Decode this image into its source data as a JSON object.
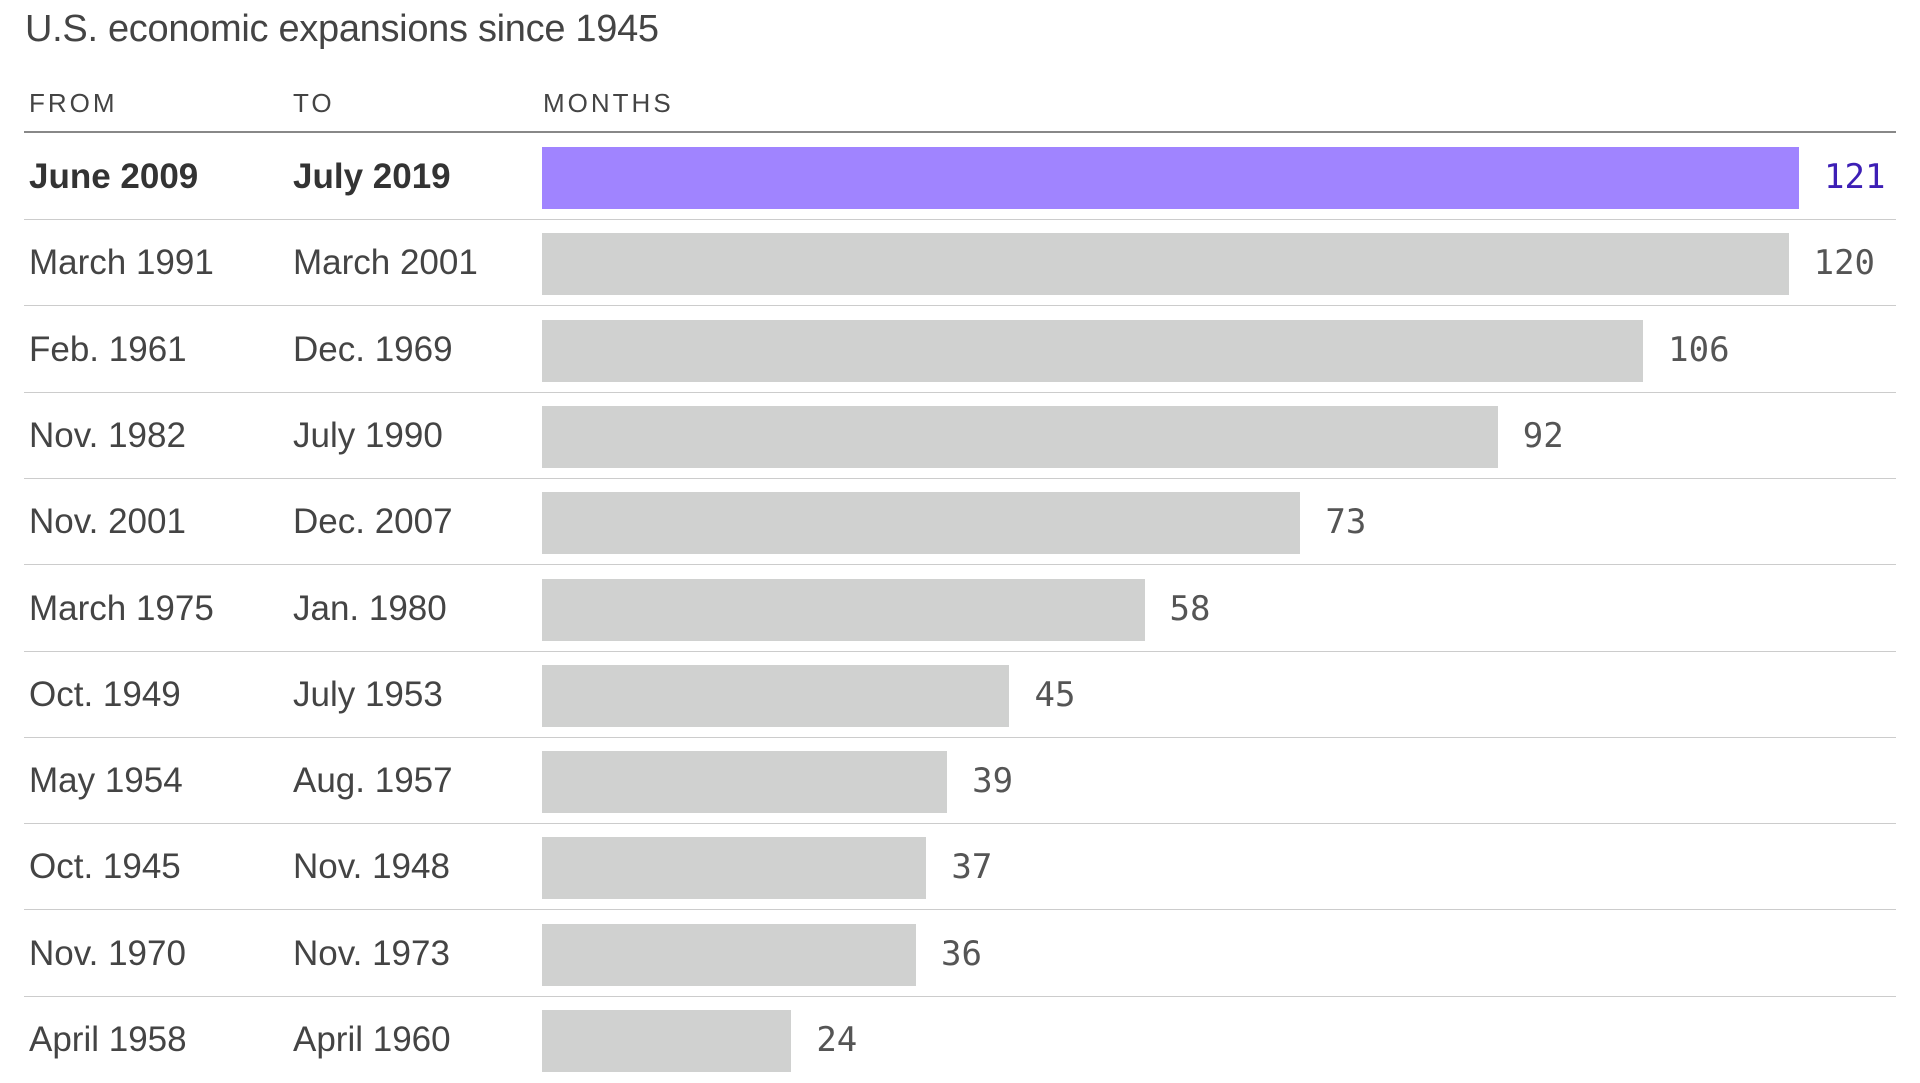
{
  "chart_data": {
    "type": "bar",
    "title": "U.S. economic expansions since 1945",
    "columns": [
      "FROM",
      "TO",
      "MONTHS"
    ],
    "rows": [
      {
        "from": "June 2009",
        "to": "July 2019",
        "months": 121,
        "highlight": true
      },
      {
        "from": "March 1991",
        "to": "March 2001",
        "months": 120
      },
      {
        "from": "Feb. 1961",
        "to": "Dec. 1969",
        "months": 106
      },
      {
        "from": "Nov. 1982",
        "to": "July 1990",
        "months": 92
      },
      {
        "from": "Nov. 2001",
        "to": "Dec. 2007",
        "months": 73
      },
      {
        "from": "March 1975",
        "to": "Jan. 1980",
        "months": 58
      },
      {
        "from": "Oct. 1949",
        "to": "July 1953",
        "months": 45
      },
      {
        "from": "May 1954",
        "to": "Aug. 1957",
        "months": 39
      },
      {
        "from": "Oct. 1945",
        "to": "Nov. 1948",
        "months": 37
      },
      {
        "from": "Nov. 1970",
        "to": "Nov. 1973",
        "months": 36
      },
      {
        "from": "April 1958",
        "to": "April 1960",
        "months": 24
      }
    ],
    "colors": {
      "highlight_bar": "#a084ff",
      "highlight_label": "#3d1fb5",
      "bar": "#d0d1d0"
    }
  }
}
